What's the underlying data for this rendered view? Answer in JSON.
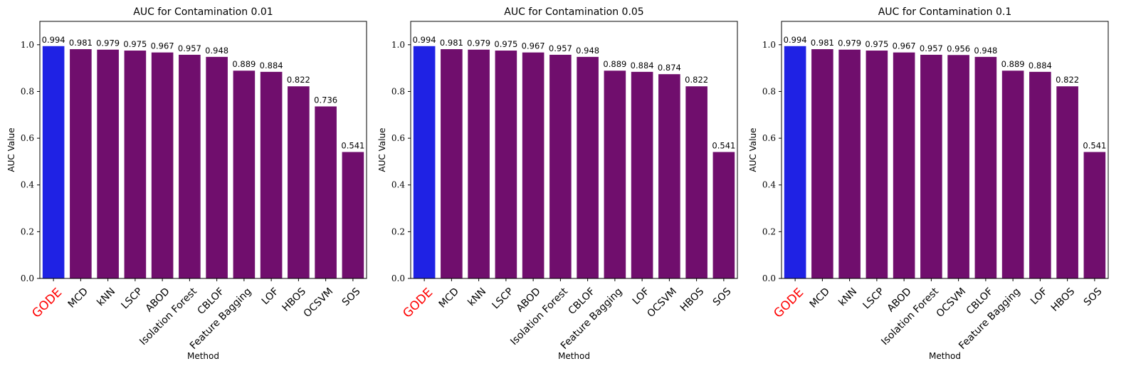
{
  "colors": {
    "highlight_bar": "#1f22e4",
    "bar": "#700e6d",
    "highlight_label": "#ff0000",
    "axis": "#000000"
  },
  "chart_data": [
    {
      "type": "bar",
      "title": "AUC for Contamination 0.01",
      "xlabel": "Method",
      "ylabel": "AUC Value",
      "ylim": [
        0,
        1.1
      ],
      "yticks": [
        "0.0",
        "0.2",
        "0.4",
        "0.6",
        "0.8",
        "1.0"
      ],
      "highlight": "GODE",
      "categories": [
        "GODE",
        "MCD",
        "kNN",
        "LSCP",
        "ABOD",
        "Isolation Forest",
        "CBLOF",
        "Feature Bagging",
        "LOF",
        "HBOS",
        "OCSVM",
        "SOS"
      ],
      "values": [
        0.994,
        0.981,
        0.979,
        0.975,
        0.967,
        0.957,
        0.948,
        0.889,
        0.884,
        0.822,
        0.736,
        0.541
      ],
      "labels": [
        "0.994",
        "0.981",
        "0.979",
        "0.975",
        "0.967",
        "0.957",
        "0.948",
        "0.889",
        "0.884",
        "0.822",
        "0.736",
        "0.541"
      ]
    },
    {
      "type": "bar",
      "title": "AUC for Contamination 0.05",
      "xlabel": "Method",
      "ylabel": "AUC Value",
      "ylim": [
        0,
        1.1
      ],
      "yticks": [
        "0.0",
        "0.2",
        "0.4",
        "0.6",
        "0.8",
        "1.0"
      ],
      "highlight": "GODE",
      "categories": [
        "GODE",
        "MCD",
        "kNN",
        "LSCP",
        "ABOD",
        "Isolation Forest",
        "CBLOF",
        "Feature Bagging",
        "LOF",
        "OCSVM",
        "HBOS",
        "SOS"
      ],
      "values": [
        0.994,
        0.981,
        0.979,
        0.975,
        0.967,
        0.957,
        0.948,
        0.889,
        0.884,
        0.874,
        0.822,
        0.541
      ],
      "labels": [
        "0.994",
        "0.981",
        "0.979",
        "0.975",
        "0.967",
        "0.957",
        "0.948",
        "0.889",
        "0.884",
        "0.874",
        "0.822",
        "0.541"
      ]
    },
    {
      "type": "bar",
      "title": "AUC for Contamination 0.1",
      "xlabel": "Method",
      "ylabel": "AUC Value",
      "ylim": [
        0,
        1.1
      ],
      "yticks": [
        "0.0",
        "0.2",
        "0.4",
        "0.6",
        "0.8",
        "1.0"
      ],
      "highlight": "GODE",
      "categories": [
        "GODE",
        "MCD",
        "kNN",
        "LSCP",
        "ABOD",
        "Isolation Forest",
        "OCSVM",
        "CBLOF",
        "Feature Bagging",
        "LOF",
        "HBOS",
        "SOS"
      ],
      "values": [
        0.994,
        0.981,
        0.979,
        0.975,
        0.967,
        0.957,
        0.956,
        0.948,
        0.889,
        0.884,
        0.822,
        0.541
      ],
      "labels": [
        "0.994",
        "0.981",
        "0.979",
        "0.975",
        "0.967",
        "0.957",
        "0.956",
        "0.948",
        "0.889",
        "0.884",
        "0.822",
        "0.541"
      ]
    }
  ]
}
